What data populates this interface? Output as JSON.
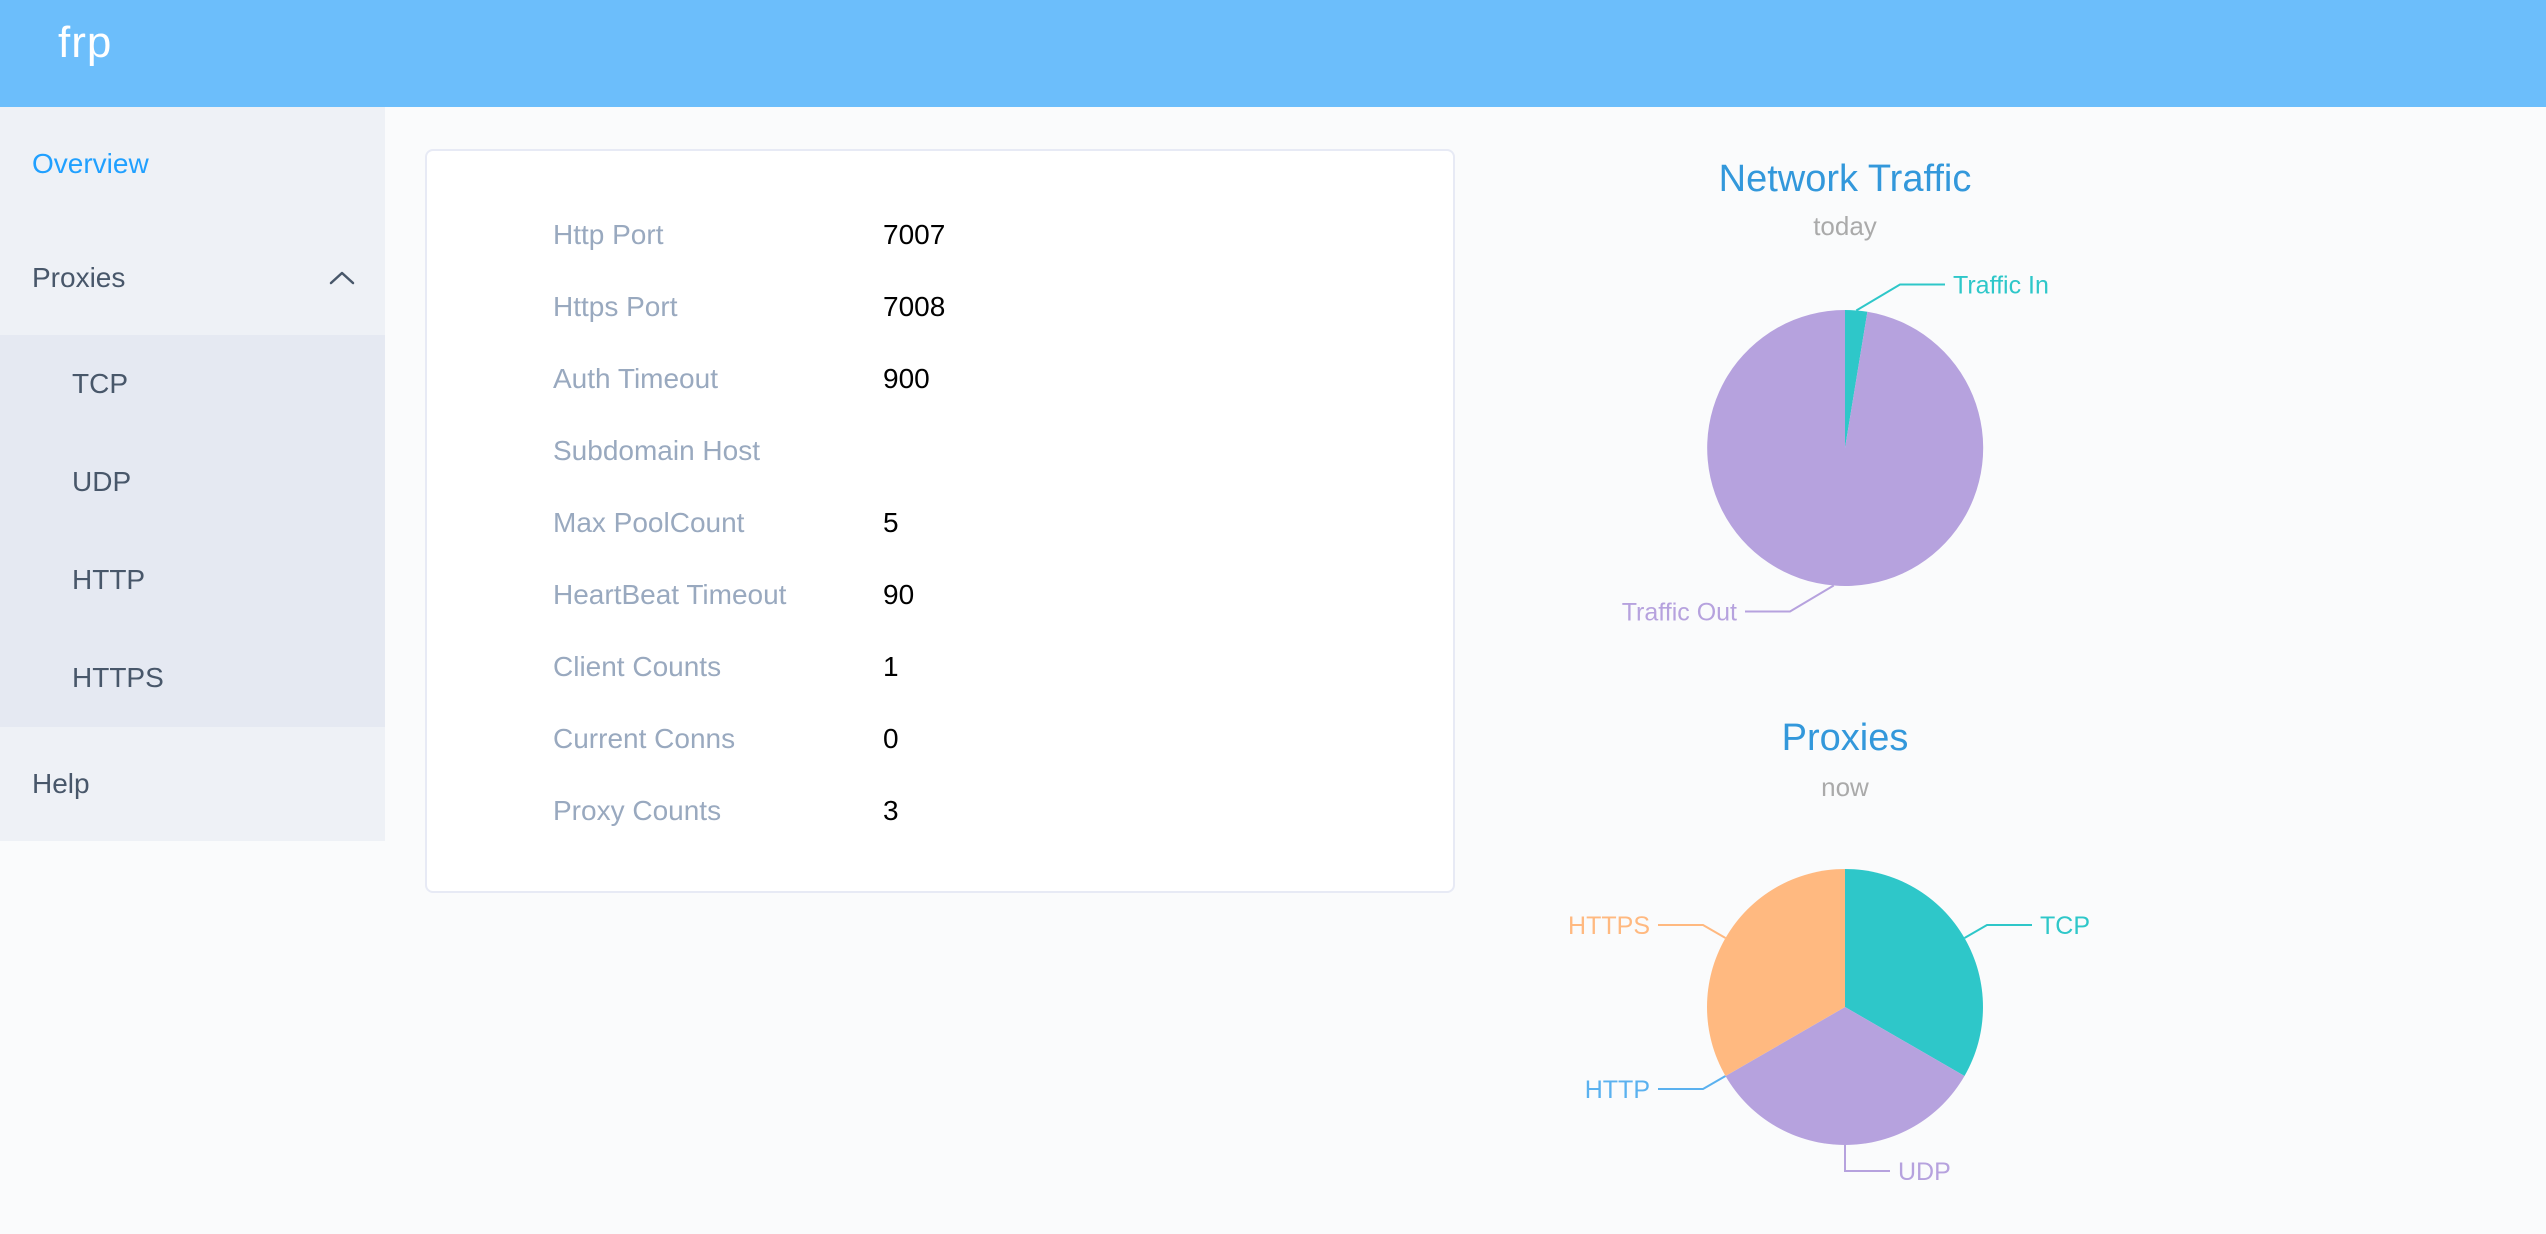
{
  "header": {
    "logo": "frp"
  },
  "sidebar": {
    "items": [
      {
        "id": "overview",
        "label": "Overview",
        "type": "item",
        "active": true
      },
      {
        "id": "proxies",
        "label": "Proxies",
        "type": "submenu",
        "expanded": true,
        "children": [
          {
            "id": "tcp",
            "label": "TCP"
          },
          {
            "id": "udp",
            "label": "UDP"
          },
          {
            "id": "http",
            "label": "HTTP"
          },
          {
            "id": "https",
            "label": "HTTPS"
          }
        ]
      },
      {
        "id": "help",
        "label": "Help",
        "type": "item",
        "active": false
      }
    ]
  },
  "server_info": {
    "rows": [
      {
        "label": "Http Port",
        "value": "7007"
      },
      {
        "label": "Https Port",
        "value": "7008"
      },
      {
        "label": "Auth Timeout",
        "value": "900"
      },
      {
        "label": "Subdomain Host",
        "value": ""
      },
      {
        "label": "Max PoolCount",
        "value": "5"
      },
      {
        "label": "HeartBeat Timeout",
        "value": "90"
      },
      {
        "label": "Client Counts",
        "value": "1"
      },
      {
        "label": "Current Conns",
        "value": "0"
      },
      {
        "label": "Proxy Counts",
        "value": "3"
      }
    ]
  },
  "chart_data": [
    {
      "type": "pie",
      "title": "Network Traffic",
      "subtitle": "today",
      "values_unit": "percent of total (estimated from slice angles, no numeric labels shown)",
      "legend_position": "callout-labels",
      "start_angle": "12 o'clock, clockwise",
      "series": [
        {
          "name": "Traffic In",
          "value": 2.6,
          "color": "#2ec7c9"
        },
        {
          "name": "Traffic Out",
          "value": 97.4,
          "color": "#b6a2de"
        }
      ]
    },
    {
      "type": "pie",
      "title": "Proxies",
      "subtitle": "now",
      "values_unit": "proxy count",
      "legend_position": "callout-labels",
      "start_angle": "12 o'clock, clockwise",
      "series": [
        {
          "name": "TCP",
          "value": 1,
          "color": "#2ec7c9"
        },
        {
          "name": "UDP",
          "value": 1,
          "color": "#b6a2de"
        },
        {
          "name": "HTTP",
          "value": 0,
          "color": "#5ab1ef"
        },
        {
          "name": "HTTPS",
          "value": 1,
          "color": "#ffb980"
        }
      ]
    }
  ],
  "colors": {
    "header_bg": "#6cbefb",
    "sidebar_bg": "#eef1f6",
    "submenu_bg": "#e5e9f2",
    "menu_text": "#48576a",
    "menu_active": "#20a0ff",
    "panel_bg": "#ffffff",
    "panel_border": "#e7eaf5",
    "config_label": "#99a9bf",
    "config_value": "#000000",
    "chart_title": "#3398db",
    "chart_subtitle": "#aaaaaa",
    "page_bg": "#fafbfc"
  }
}
